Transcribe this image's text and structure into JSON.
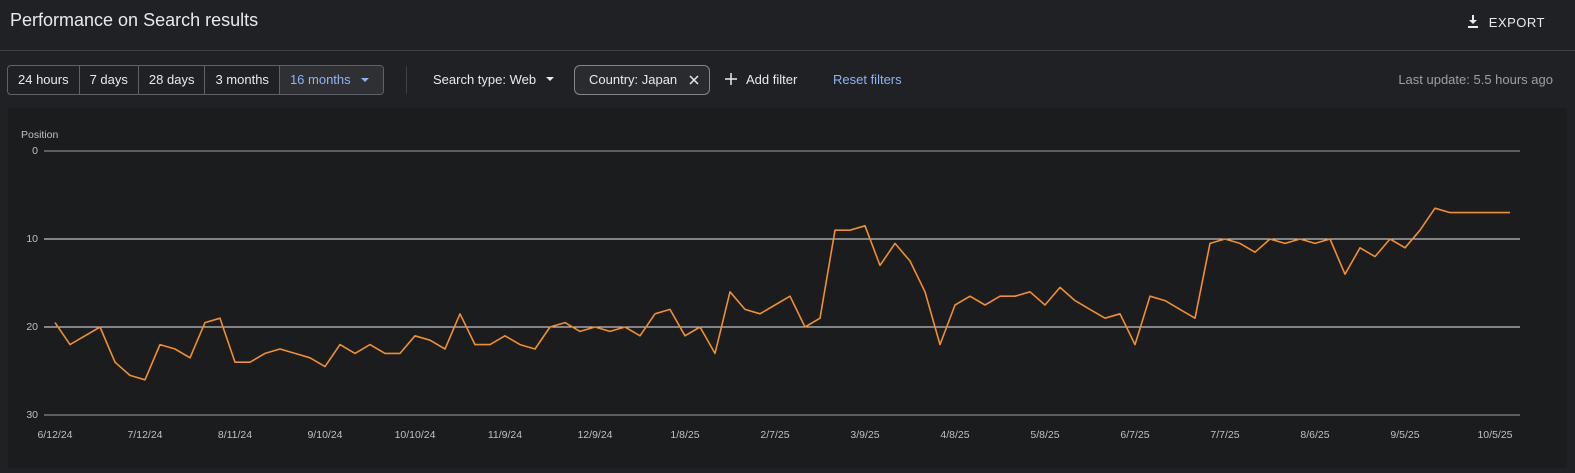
{
  "header": {
    "title": "Performance on Search results",
    "export": "EXPORT"
  },
  "filters": {
    "ranges": [
      "24 hours",
      "7 days",
      "28 days",
      "3 months",
      "16 months"
    ],
    "search_type": "Search type: Web",
    "country": "Country: Japan",
    "add_filter": "Add filter",
    "reset": "Reset filters",
    "last_update": "Last update: 5.5 hours ago"
  },
  "chart_data": {
    "type": "line",
    "y_label": "Position",
    "color": "#f28e2b",
    "y_reversed": true,
    "grid": true,
    "x": [
      "6/12/24",
      "6/17/24",
      "6/22/24",
      "6/27/24",
      "7/2/24",
      "7/7/24",
      "7/12/24",
      "7/17/24",
      "7/22/24",
      "7/27/24",
      "8/1/24",
      "8/6/24",
      "8/11/24",
      "8/16/24",
      "8/21/24",
      "8/26/24",
      "8/31/24",
      "9/5/24",
      "9/10/24",
      "9/15/24",
      "9/20/24",
      "9/25/24",
      "9/30/24",
      "10/5/24",
      "10/10/24",
      "10/15/24",
      "10/20/24",
      "10/25/24",
      "10/30/24",
      "11/4/24",
      "11/9/24",
      "11/14/24",
      "11/19/24",
      "11/24/24",
      "11/29/24",
      "12/4/24",
      "12/9/24",
      "12/14/24",
      "12/19/24",
      "12/24/24",
      "12/29/24",
      "1/3/25",
      "1/8/25",
      "1/13/25",
      "1/18/25",
      "1/23/25",
      "1/28/25",
      "2/2/25",
      "2/7/25",
      "2/12/25",
      "2/17/25",
      "2/22/25",
      "2/27/25",
      "3/4/25",
      "3/9/25",
      "3/14/25",
      "3/19/25",
      "3/24/25",
      "3/29/25",
      "4/3/25",
      "4/8/25",
      "4/13/25",
      "4/18/25",
      "4/23/25",
      "4/28/25",
      "5/3/25",
      "5/8/25",
      "5/13/25",
      "5/18/25",
      "5/23/25",
      "5/28/25",
      "6/2/25",
      "6/7/25",
      "6/12/25",
      "6/17/25",
      "6/22/25",
      "6/27/25",
      "7/2/25",
      "7/7/25",
      "7/12/25",
      "7/17/25",
      "7/22/25",
      "7/27/25",
      "8/1/25",
      "8/6/25",
      "8/11/25",
      "8/16/25",
      "8/21/25",
      "8/26/25",
      "8/31/25",
      "9/5/25",
      "9/10/25",
      "9/15/25",
      "9/20/25",
      "9/25/25",
      "9/30/25",
      "10/5/25",
      "10/10/25"
    ],
    "values": [
      19.5,
      22,
      21,
      20,
      24,
      25.5,
      26,
      22,
      22.5,
      23.5,
      19.5,
      19,
      24,
      24,
      23,
      22.5,
      23,
      23.5,
      24.5,
      22,
      23,
      22,
      23,
      23,
      21,
      21.5,
      22.5,
      18.5,
      22,
      22,
      21,
      22,
      22.5,
      20,
      19.5,
      20.5,
      20,
      20.5,
      20,
      21,
      18.5,
      18,
      21,
      20,
      23,
      16,
      18,
      18.5,
      17.5,
      16.5,
      20,
      19,
      9,
      9,
      8.5,
      13,
      10.5,
      12.5,
      16,
      22,
      17.5,
      16.5,
      17.5,
      16.5,
      16.5,
      16,
      17.5,
      15.5,
      17,
      18,
      19,
      18.5,
      22,
      16.5,
      17,
      18,
      19,
      10.5,
      10,
      10.5,
      11.5,
      10,
      10.5,
      10,
      10.5,
      10,
      14,
      11,
      12,
      10,
      11,
      9,
      6.5,
      7,
      7,
      7,
      7,
      7
    ],
    "xlim": [
      "6/12/24",
      "10/10/25"
    ],
    "xticks": [
      "6/12/24",
      "7/12/24",
      "8/11/24",
      "9/10/24",
      "10/10/24",
      "11/9/24",
      "12/9/24",
      "1/8/25",
      "2/7/25",
      "3/9/25",
      "4/8/25",
      "5/8/25",
      "6/7/25",
      "7/7/25",
      "8/6/25",
      "9/5/25",
      "10/5/25"
    ],
    "ylim": [
      0,
      30
    ],
    "yticks": [
      0,
      10,
      20,
      30
    ]
  }
}
